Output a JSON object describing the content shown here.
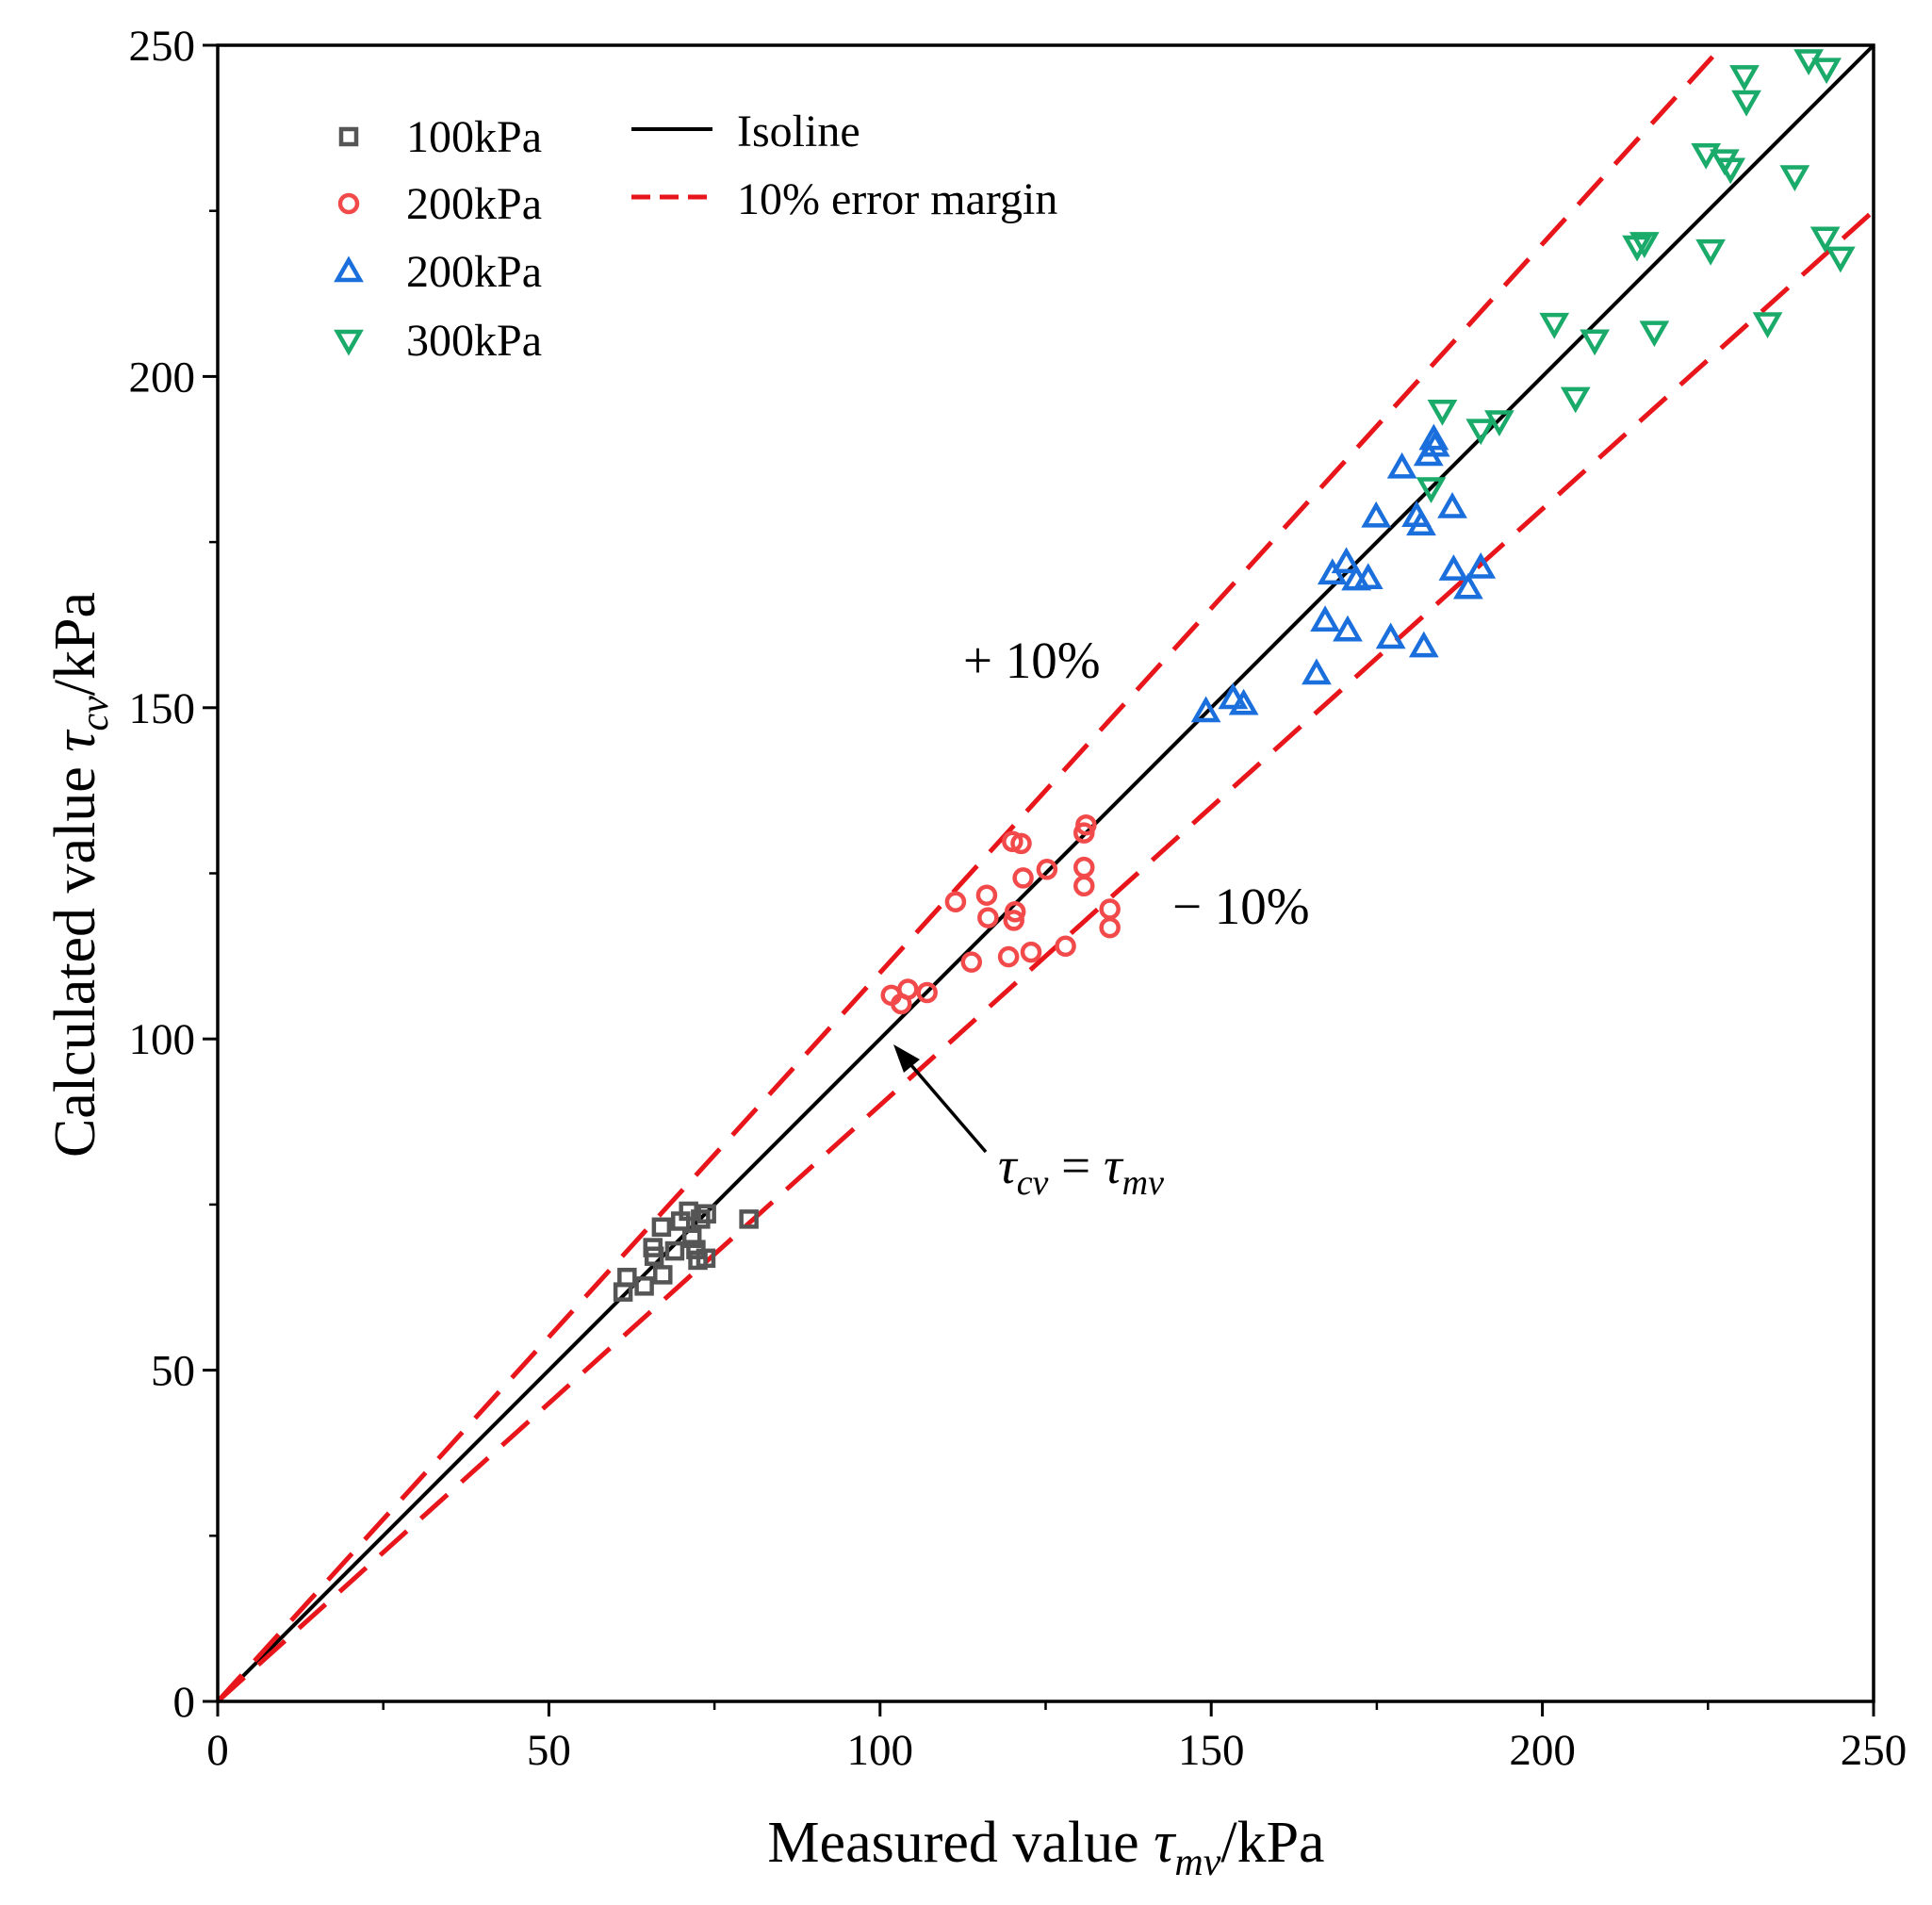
{
  "chart_data": {
    "type": "scatter",
    "xlabel": {
      "prefix": "Measured value ",
      "symbol": "τ",
      "subscript": "mv",
      "suffix": "/kPa"
    },
    "ylabel": {
      "prefix": "Calculated value ",
      "symbol": "τ",
      "subscript": "cv",
      "suffix": "/kPa"
    },
    "xlim": [
      0,
      250
    ],
    "ylim": [
      0,
      250
    ],
    "xticks": [
      0,
      50,
      100,
      150,
      200,
      250
    ],
    "yticks": [
      0,
      50,
      100,
      150,
      200,
      250
    ],
    "xtick_labels": [
      "0",
      "50",
      "100",
      "150",
      "200",
      "250"
    ],
    "ytick_labels": [
      "0",
      "50",
      "100",
      "150",
      "200",
      "250"
    ],
    "minor_tick_step": 25,
    "grid": false,
    "legend_position": "top-left",
    "series": [
      {
        "name": "100kPa",
        "marker": "square",
        "color": "#555555",
        "points": [
          [
            61.2,
            61.8
          ],
          [
            61.8,
            64.0
          ],
          [
            64.4,
            62.7
          ],
          [
            65.7,
            68.5
          ],
          [
            65.9,
            67.2
          ],
          [
            67.0,
            71.6
          ],
          [
            67.2,
            64.4
          ],
          [
            69.0,
            68.0
          ],
          [
            69.9,
            72.5
          ],
          [
            71.1,
            74.0
          ],
          [
            71.6,
            69.9
          ],
          [
            72.2,
            68.2
          ],
          [
            72.5,
            66.6
          ],
          [
            73.7,
            66.9
          ],
          [
            72.9,
            72.8
          ],
          [
            73.8,
            73.6
          ],
          [
            80.2,
            72.8
          ]
        ]
      },
      {
        "name": "200kPa",
        "marker": "circle",
        "color": "#f24a4a",
        "points": [
          [
            101.7,
            106.6
          ],
          [
            103.2,
            105.3
          ],
          [
            104.2,
            107.5
          ],
          [
            107.1,
            107.0
          ],
          [
            111.4,
            120.7
          ],
          [
            113.8,
            111.6
          ],
          [
            116.1,
            121.7
          ],
          [
            116.3,
            118.3
          ],
          [
            119.4,
            112.4
          ],
          [
            120.0,
            129.8
          ],
          [
            120.2,
            117.9
          ],
          [
            120.4,
            119.2
          ],
          [
            121.3,
            129.5
          ],
          [
            121.6,
            124.3
          ],
          [
            122.8,
            113.1
          ],
          [
            125.2,
            125.6
          ],
          [
            128.0,
            114.0
          ],
          [
            130.8,
            131.1
          ],
          [
            131.1,
            132.3
          ],
          [
            130.8,
            125.9
          ],
          [
            130.8,
            123.1
          ],
          [
            134.7,
            119.6
          ],
          [
            134.7,
            116.8
          ]
        ]
      },
      {
        "name": "200kPa",
        "marker": "triangle-up",
        "color": "#1a6fdc",
        "points": [
          [
            149.2,
            149.4
          ],
          [
            153.3,
            151.4
          ],
          [
            154.9,
            150.5
          ],
          [
            165.9,
            155.1
          ],
          [
            167.2,
            163.1
          ],
          [
            168.3,
            170.2
          ],
          [
            170.4,
            171.9
          ],
          [
            170.6,
            161.6
          ],
          [
            171.9,
            169.3
          ],
          [
            173.7,
            169.5
          ],
          [
            174.9,
            178.8
          ],
          [
            177.1,
            160.5
          ],
          [
            178.8,
            186.2
          ],
          [
            181.0,
            178.9
          ],
          [
            181.7,
            177.6
          ],
          [
            182.1,
            159.2
          ],
          [
            182.8,
            188.1
          ],
          [
            183.6,
            190.5
          ],
          [
            183.8,
            189.5
          ],
          [
            186.4,
            180.2
          ],
          [
            186.6,
            170.8
          ],
          [
            188.8,
            168.0
          ],
          [
            190.7,
            171.1
          ]
        ]
      },
      {
        "name": "300kPa",
        "marker": "triangle-down",
        "color": "#1aaa6a",
        "points": [
          [
            183.2,
            183.2
          ],
          [
            184.9,
            194.9
          ],
          [
            190.7,
            192.0
          ],
          [
            193.5,
            193.3
          ],
          [
            201.8,
            208.0
          ],
          [
            205.0,
            196.8
          ],
          [
            207.9,
            205.5
          ],
          [
            214.3,
            219.7
          ],
          [
            215.4,
            220.2
          ],
          [
            216.9,
            206.8
          ],
          [
            224.7,
            233.6
          ],
          [
            225.4,
            219.1
          ],
          [
            227.5,
            232.7
          ],
          [
            228.4,
            231.4
          ],
          [
            230.5,
            245.4
          ],
          [
            230.8,
            241.6
          ],
          [
            234.0,
            208.1
          ],
          [
            238.1,
            230.3
          ],
          [
            240.2,
            247.8
          ],
          [
            242.9,
            246.5
          ],
          [
            242.7,
            221.0
          ],
          [
            245.0,
            218.0
          ]
        ]
      }
    ],
    "lines": [
      {
        "name": "Isoline",
        "style": "solid",
        "color": "#000000",
        "margin": 0
      },
      {
        "name": "10% error margin",
        "style": "dashed",
        "color": "#e8151b",
        "margin": 0.1
      }
    ],
    "annotations": {
      "plus": "+ 10%",
      "minus": "− 10%",
      "equation": {
        "lhs_symbol": "τ",
        "lhs_subscript": "cv",
        "operator": " = ",
        "rhs_symbol": "τ",
        "rhs_subscript": "mv"
      }
    }
  }
}
